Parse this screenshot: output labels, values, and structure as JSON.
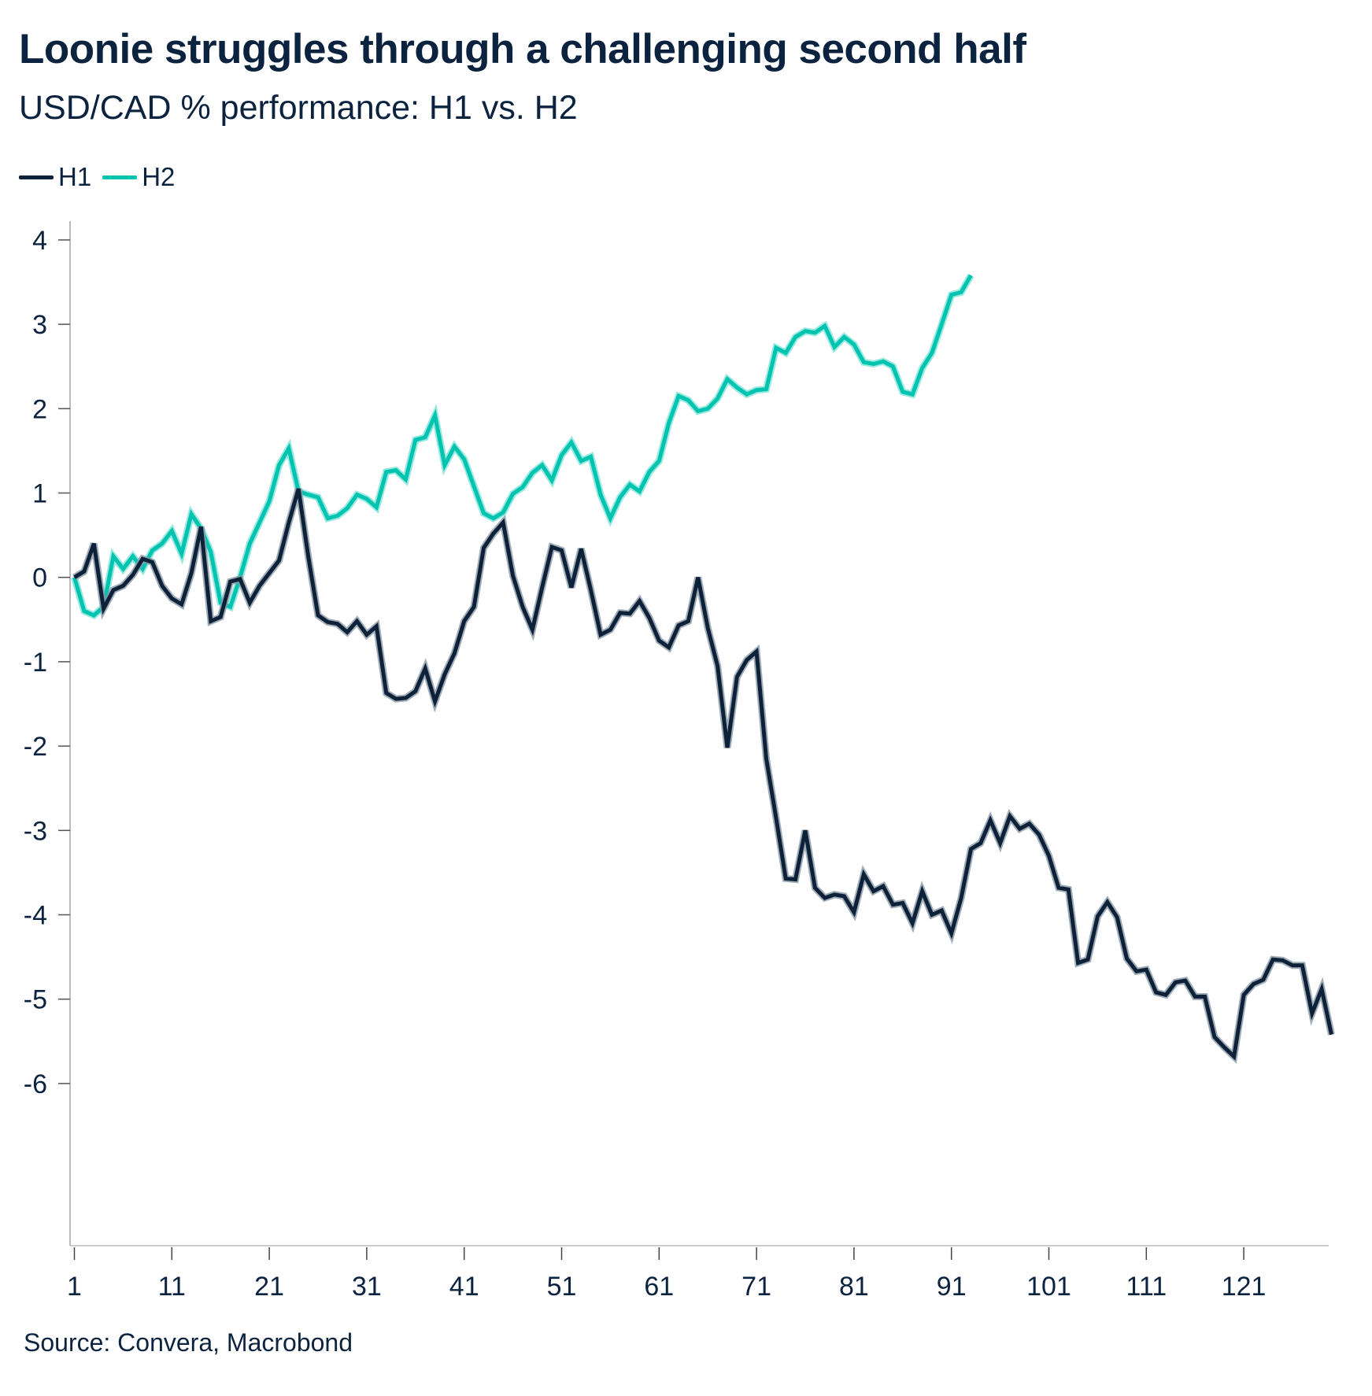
{
  "chart_data": {
    "type": "line",
    "title": "Loonie struggles through a challenging second half",
    "subtitle": "USD/CAD % performance: H1 vs. H2",
    "source": "Source: Convera, Macrobond",
    "xlabel": "",
    "ylabel": "",
    "xlim": [
      1,
      130
    ],
    "ylim": [
      -6,
      4
    ],
    "x_ticks": [
      "1",
      "11",
      "21",
      "31",
      "41",
      "51",
      "61",
      "71",
      "81",
      "91",
      "101",
      "111",
      "121"
    ],
    "y_ticks": [
      "4",
      "3",
      "2",
      "1",
      "0",
      "-1",
      "-2",
      "-3",
      "-4",
      "-5",
      "-6"
    ],
    "grid": false,
    "legend_position": "top-left",
    "series": [
      {
        "name": "H1",
        "color": "#0d2238",
        "values": [
          0,
          0.07,
          0.4,
          -0.37,
          -0.15,
          -0.1,
          0.03,
          0.22,
          0.18,
          -0.1,
          -0.25,
          -0.32,
          0.05,
          0.6,
          -0.52,
          -0.47,
          -0.05,
          -0.02,
          -0.3,
          -0.1,
          0.05,
          0.2,
          0.65,
          1.05,
          0.25,
          -0.45,
          -0.53,
          -0.55,
          -0.65,
          -0.52,
          -0.68,
          -0.58,
          -1.37,
          -1.44,
          -1.43,
          -1.35,
          -1.08,
          -1.47,
          -1.15,
          -0.9,
          -0.52,
          -0.35,
          0.35,
          0.52,
          0.65,
          0.02,
          -0.35,
          -0.62,
          -0.12,
          0.36,
          0.32,
          -0.12,
          0.34,
          -0.15,
          -0.68,
          -0.62,
          -0.42,
          -0.43,
          -0.28,
          -0.48,
          -0.75,
          -0.83,
          -0.57,
          -0.52,
          0.0,
          -0.6,
          -1.05,
          -2.02,
          -1.18,
          -0.98,
          -0.88,
          -2.15,
          -2.85,
          -3.57,
          -3.58,
          -3.0,
          -3.68,
          -3.8,
          -3.76,
          -3.78,
          -3.97,
          -3.52,
          -3.72,
          -3.66,
          -3.88,
          -3.86,
          -4.1,
          -3.72,
          -4.0,
          -3.95,
          -4.22,
          -3.8,
          -3.22,
          -3.15,
          -2.88,
          -3.15,
          -2.83,
          -2.98,
          -2.92,
          -3.05,
          -3.3,
          -3.68,
          -3.7,
          -4.57,
          -4.53,
          -4.02,
          -3.85,
          -4.03,
          -4.52,
          -4.67,
          -4.65,
          -4.92,
          -4.95,
          -4.8,
          -4.78,
          -4.97,
          -4.97,
          -5.45,
          -5.57,
          -5.68,
          -4.95,
          -4.82,
          -4.77,
          -4.53,
          -4.54,
          -4.6,
          -4.6,
          -5.17,
          -4.88,
          -5.42
        ]
      },
      {
        "name": "H2",
        "color": "#00c4b0",
        "values": [
          0,
          -0.4,
          -0.45,
          -0.35,
          0.25,
          0.1,
          0.25,
          0.1,
          0.32,
          0.4,
          0.55,
          0.28,
          0.75,
          0.58,
          0.3,
          -0.3,
          -0.35,
          0.0,
          0.4,
          0.65,
          0.9,
          1.33,
          1.53,
          1.02,
          0.98,
          0.95,
          0.7,
          0.73,
          0.82,
          0.98,
          0.93,
          0.83,
          1.25,
          1.27,
          1.16,
          1.63,
          1.66,
          1.92,
          1.33,
          1.55,
          1.4,
          1.08,
          0.76,
          0.7,
          0.77,
          0.99,
          1.07,
          1.24,
          1.33,
          1.15,
          1.45,
          1.6,
          1.38,
          1.43,
          0.98,
          0.7,
          0.95,
          1.1,
          1.02,
          1.25,
          1.38,
          1.83,
          2.15,
          2.1,
          1.97,
          2.0,
          2.12,
          2.35,
          2.25,
          2.17,
          2.22,
          2.23,
          2.72,
          2.66,
          2.85,
          2.92,
          2.9,
          2.98,
          2.73,
          2.85,
          2.76,
          2.55,
          2.53,
          2.56,
          2.5,
          2.2,
          2.17,
          2.48,
          2.66,
          3.0,
          3.35,
          3.38,
          3.58
        ]
      }
    ]
  }
}
